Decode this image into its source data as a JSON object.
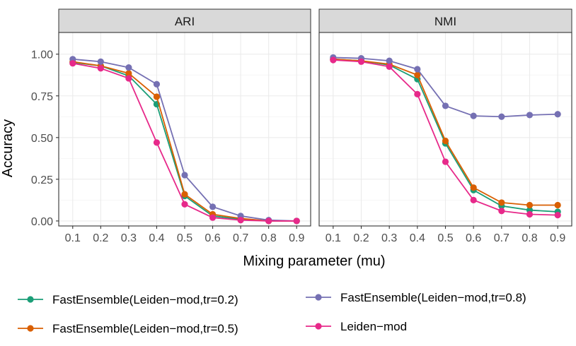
{
  "chart_data": {
    "type": "line",
    "ylabel": "Accuracy",
    "xlabel": "Mixing parameter (mu)",
    "x": [
      0.1,
      0.2,
      0.3,
      0.4,
      0.5,
      0.6,
      0.7,
      0.8,
      0.9
    ],
    "x_tick_labels": [
      "0.1",
      "0.2",
      "0.3",
      "0.4",
      "0.5",
      "0.6",
      "0.7",
      "0.8",
      "0.9"
    ],
    "ylim": [
      -0.03,
      1.13
    ],
    "y_ticks": [
      0.0,
      0.25,
      0.5,
      0.75,
      1.0
    ],
    "y_tick_labels": [
      "0.00",
      "0.25",
      "0.50",
      "0.75",
      "1.00"
    ],
    "grid": true,
    "legend_position": "bottom",
    "series_meta": [
      {
        "name": "FastEnsemble(Leiden−mod,tr=0.2)",
        "color": "#1b9e77"
      },
      {
        "name": "FastEnsemble(Leiden−mod,tr=0.5)",
        "color": "#d95f02"
      },
      {
        "name": "FastEnsemble(Leiden−mod,tr=0.8)",
        "color": "#7570b3"
      },
      {
        "name": "Leiden−mod",
        "color": "#e7298a"
      }
    ],
    "panels": [
      {
        "title": "ARI",
        "series": [
          {
            "name": "FastEnsemble(Leiden−mod,tr=0.2)",
            "values": [
              0.95,
              0.93,
              0.87,
              0.7,
              0.15,
              0.03,
              0.01,
              0.0,
              0.0
            ]
          },
          {
            "name": "FastEnsemble(Leiden−mod,tr=0.5)",
            "values": [
              0.955,
              0.93,
              0.885,
              0.745,
              0.16,
              0.04,
              0.015,
              0.0,
              0.0
            ]
          },
          {
            "name": "FastEnsemble(Leiden−mod,tr=0.8)",
            "values": [
              0.97,
              0.955,
              0.92,
              0.82,
              0.275,
              0.085,
              0.03,
              0.005,
              0.0
            ]
          },
          {
            "name": "Leiden−mod",
            "values": [
              0.945,
              0.915,
              0.855,
              0.47,
              0.1,
              0.02,
              0.005,
              0.0,
              0.0
            ]
          }
        ]
      },
      {
        "title": "NMI",
        "series": [
          {
            "name": "FastEnsemble(Leiden−mod,tr=0.2)",
            "values": [
              0.97,
              0.96,
              0.935,
              0.85,
              0.465,
              0.185,
              0.09,
              0.065,
              0.055
            ]
          },
          {
            "name": "FastEnsemble(Leiden−mod,tr=0.5)",
            "values": [
              0.97,
              0.96,
              0.94,
              0.875,
              0.48,
              0.2,
              0.11,
              0.095,
              0.095
            ]
          },
          {
            "name": "FastEnsemble(Leiden−mod,tr=0.8)",
            "values": [
              0.98,
              0.975,
              0.96,
              0.91,
              0.69,
              0.63,
              0.625,
              0.635,
              0.64
            ]
          },
          {
            "name": "Leiden−mod",
            "values": [
              0.965,
              0.955,
              0.925,
              0.76,
              0.355,
              0.125,
              0.06,
              0.04,
              0.035
            ]
          }
        ]
      }
    ]
  }
}
